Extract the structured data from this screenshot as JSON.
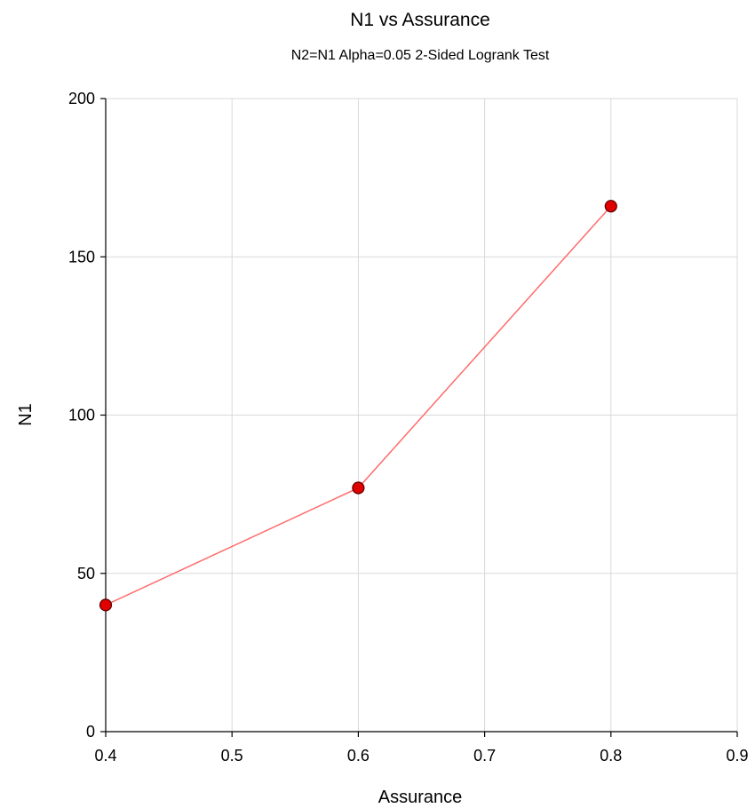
{
  "chart_data": {
    "type": "line",
    "title": "N1 vs Assurance",
    "subtitle": "N2=N1 Alpha=0.05 2-Sided Logrank Test",
    "xlabel": "Assurance",
    "ylabel": "N1",
    "xlim": [
      0.4,
      0.9
    ],
    "ylim": [
      0,
      200
    ],
    "xticks": [
      0.4,
      0.5,
      0.6,
      0.7,
      0.8,
      0.9
    ],
    "xtick_labels": [
      "0.4",
      "0.5",
      "0.6",
      "0.7",
      "0.8",
      "0.9"
    ],
    "yticks": [
      0,
      50,
      100,
      150,
      200
    ],
    "ytick_labels": [
      "0",
      "50",
      "100",
      "150",
      "200"
    ],
    "grid": true,
    "series": [
      {
        "x": [
          0.4,
          0.6,
          0.8
        ],
        "y": [
          40,
          77,
          166
        ],
        "line_color": "#ff6b6b",
        "marker_color": "#e00000"
      }
    ]
  }
}
